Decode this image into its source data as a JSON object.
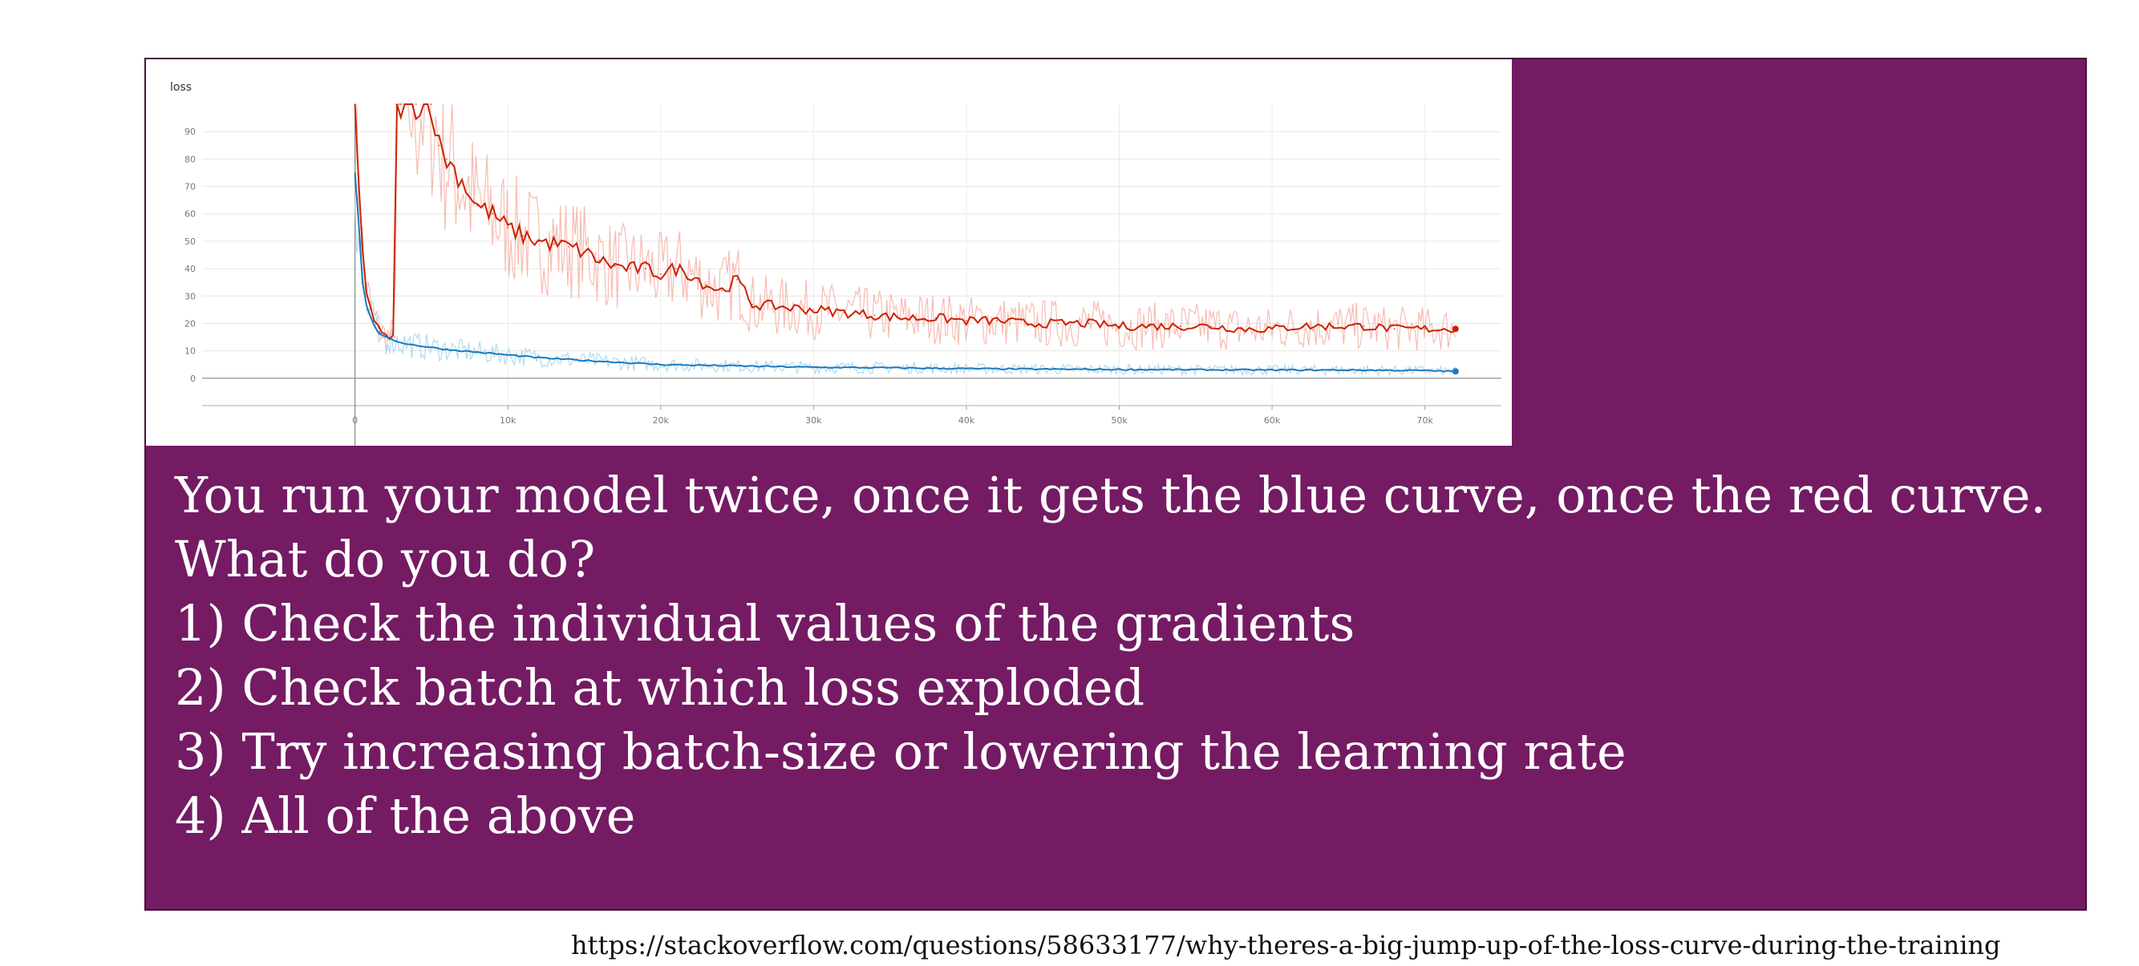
{
  "slide": {
    "question_lines": [
      "You run your model twice, once it gets the blue curve, once the red curve.",
      "What do you do?",
      "1) Check the individual values of the gradients",
      "2) Check batch at which loss exploded",
      "3) Try increasing batch-size or lowering the learning rate",
      "4) All of the above"
    ],
    "source_url": "https://stackoverflow.com/questions/58633177/why-theres-a-big-jump-up-of-the-loss-curve-during-the-training"
  },
  "chart_data": {
    "type": "line",
    "title": "loss",
    "xlim": [
      -10000,
      75000
    ],
    "ylim": [
      -10,
      100
    ],
    "x_ticks": [
      0,
      10000,
      20000,
      30000,
      40000,
      50000,
      60000,
      70000
    ],
    "x_tick_labels": [
      "0",
      "10k",
      "20k",
      "30k",
      "40k",
      "50k",
      "60k",
      "70k"
    ],
    "y_ticks": [
      0,
      10,
      20,
      30,
      40,
      50,
      60,
      70,
      80,
      90
    ],
    "y_tick_labels": [
      "0",
      "10",
      "20",
      "30",
      "40",
      "50",
      "60",
      "70",
      "80",
      "90"
    ],
    "grid": true,
    "series": [
      {
        "color": "#cc2200",
        "raw_color": "#f5b5a8",
        "x": [
          0,
          200,
          500,
          800,
          1200,
          1600,
          2000,
          2600,
          2700,
          2900,
          3000,
          4000,
          5000,
          5500,
          6000,
          7000,
          8000,
          9000,
          10000,
          11000,
          12000,
          13000,
          14000,
          15000,
          16000,
          17000,
          18000,
          19000,
          20000,
          21000,
          22000,
          23000,
          24000,
          25000,
          26000,
          28000,
          30000,
          32000,
          34000,
          36000,
          38000,
          40000,
          42000,
          44000,
          46000,
          48000,
          50000,
          52000,
          54000,
          56000,
          58000,
          60000,
          62000,
          64000,
          66000,
          68000,
          70000,
          72000
        ],
        "values": [
          100,
          75,
          45,
          30,
          22,
          17,
          15,
          15,
          100,
          100,
          100,
          100,
          100,
          85,
          80,
          72,
          63,
          60,
          55,
          52,
          50,
          49,
          48,
          46,
          43,
          41,
          40,
          40,
          38,
          40,
          38,
          34,
          32,
          36,
          27,
          26,
          25,
          24,
          23,
          22,
          22,
          21,
          21,
          20,
          20,
          20,
          19,
          19,
          19,
          19,
          18,
          18,
          19,
          19,
          19,
          18,
          18,
          18
        ]
      },
      {
        "color": "#1a7abf",
        "raw_color": "#a9d6f0",
        "x": [
          0,
          200,
          500,
          800,
          1200,
          1600,
          2000,
          3000,
          4000,
          6000,
          8000,
          10000,
          12000,
          15000,
          20000,
          25000,
          30000,
          35000,
          40000,
          45000,
          50000,
          55000,
          60000,
          65000,
          70000,
          72000
        ],
        "values": [
          75,
          60,
          35,
          25,
          20,
          16,
          15,
          13,
          12,
          10.5,
          9.5,
          8.5,
          7.5,
          6.5,
          5,
          4.5,
          4,
          3.8,
          3.5,
          3.3,
          3.2,
          3.1,
          3,
          3,
          2.8,
          2.5
        ]
      }
    ]
  }
}
